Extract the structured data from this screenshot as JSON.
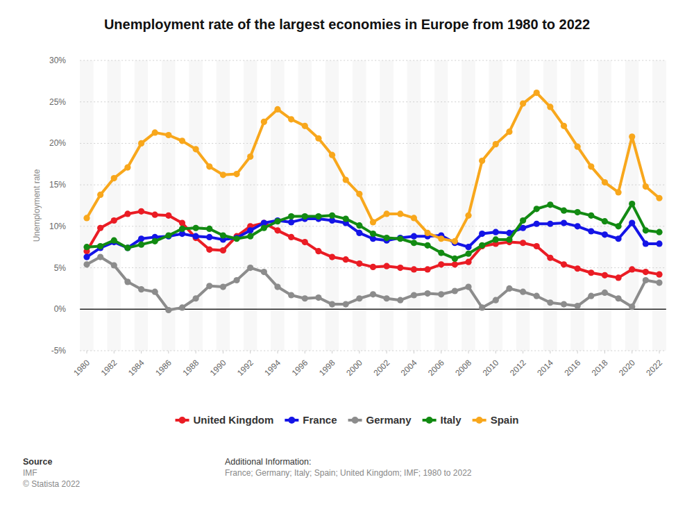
{
  "chart_data": {
    "type": "line",
    "title": "Unemployment rate of the largest economies in Europe from 1980 to 2022",
    "y_label": "Unemployment rate",
    "x": [
      1980,
      1981,
      1982,
      1983,
      1984,
      1985,
      1986,
      1987,
      1988,
      1989,
      1990,
      1991,
      1992,
      1993,
      1994,
      1995,
      1996,
      1997,
      1998,
      1999,
      2000,
      2001,
      2002,
      2003,
      2004,
      2005,
      2006,
      2007,
      2008,
      2009,
      2010,
      2011,
      2012,
      2013,
      2014,
      2015,
      2016,
      2017,
      2018,
      2019,
      2020,
      2021,
      2022
    ],
    "xlim": [
      1980,
      2022
    ],
    "xticks": [
      1980,
      1982,
      1984,
      1986,
      1988,
      1990,
      1992,
      1994,
      1996,
      1998,
      2000,
      2002,
      2004,
      2006,
      2008,
      2010,
      2012,
      2014,
      2016,
      2018,
      2020,
      2022
    ],
    "ylim": [
      -5,
      30
    ],
    "yticks": [
      {
        "value": -5,
        "label": "-5%"
      },
      {
        "value": 0,
        "label": "0%"
      },
      {
        "value": 5,
        "label": "5%"
      },
      {
        "value": 10,
        "label": "10%"
      },
      {
        "value": 15,
        "label": "15%"
      },
      {
        "value": 20,
        "label": "20%"
      },
      {
        "value": 25,
        "label": "25%"
      },
      {
        "value": 30,
        "label": "30%"
      }
    ],
    "grid": true,
    "legend": "bottom",
    "marker": "circle",
    "series": [
      {
        "name": "United Kingdom",
        "color": "#ea1c24",
        "values": [
          7.0,
          9.8,
          10.7,
          11.5,
          11.8,
          11.4,
          11.3,
          10.4,
          8.6,
          7.2,
          7.1,
          8.8,
          10.0,
          10.4,
          9.5,
          8.7,
          8.1,
          7.0,
          6.3,
          6.0,
          5.5,
          5.1,
          5.2,
          5.0,
          4.8,
          4.8,
          5.4,
          5.4,
          5.7,
          7.6,
          7.9,
          8.1,
          8.0,
          7.6,
          6.2,
          5.4,
          4.9,
          4.4,
          4.1,
          3.8,
          4.8,
          4.5,
          4.2
        ]
      },
      {
        "name": "France",
        "color": "#1414e6",
        "values": [
          6.3,
          7.4,
          8.1,
          7.4,
          8.5,
          8.7,
          8.8,
          9.1,
          8.8,
          8.7,
          8.4,
          8.6,
          9.5,
          10.4,
          10.7,
          10.5,
          10.9,
          10.9,
          10.7,
          10.4,
          9.2,
          8.5,
          8.3,
          8.6,
          8.8,
          8.8,
          8.9,
          8.0,
          7.5,
          9.1,
          9.3,
          9.2,
          9.8,
          10.3,
          10.3,
          10.4,
          10.0,
          9.4,
          9.0,
          8.5,
          10.4,
          7.9,
          7.9
        ]
      },
      {
        "name": "Germany",
        "color": "#8c8c8c",
        "values": [
          5.4,
          6.3,
          5.3,
          3.3,
          2.4,
          2.1,
          -0.1,
          0.2,
          1.3,
          2.8,
          2.7,
          3.5,
          5.0,
          4.5,
          2.7,
          1.7,
          1.3,
          1.4,
          0.6,
          0.6,
          1.3,
          1.8,
          1.3,
          1.1,
          1.7,
          1.9,
          1.8,
          2.2,
          2.7,
          0.2,
          1.1,
          2.5,
          2.1,
          1.6,
          0.8,
          0.6,
          0.4,
          1.6,
          2.0,
          1.3,
          0.3,
          3.5,
          3.2
        ]
      },
      {
        "name": "Italy",
        "color": "#128a12",
        "values": [
          7.5,
          7.6,
          8.3,
          7.4,
          7.8,
          8.2,
          8.9,
          9.7,
          9.8,
          9.7,
          8.9,
          8.5,
          8.8,
          9.8,
          10.6,
          11.2,
          11.2,
          11.2,
          11.3,
          10.9,
          10.1,
          9.1,
          8.6,
          8.5,
          8.0,
          7.7,
          6.8,
          6.1,
          6.7,
          7.7,
          8.4,
          8.4,
          10.7,
          12.1,
          12.6,
          11.9,
          11.7,
          11.3,
          10.6,
          10.0,
          12.7,
          9.5,
          9.3
        ]
      },
      {
        "name": "Spain",
        "color": "#f8a71c",
        "values": [
          11.0,
          13.8,
          15.8,
          17.1,
          20.0,
          21.3,
          21.0,
          20.3,
          19.3,
          17.2,
          16.2,
          16.3,
          18.4,
          22.6,
          24.1,
          22.9,
          22.1,
          20.6,
          18.6,
          15.6,
          13.9,
          10.5,
          11.5,
          11.5,
          11.0,
          9.2,
          8.5,
          8.2,
          11.3,
          17.9,
          19.9,
          21.4,
          24.8,
          26.1,
          24.4,
          22.1,
          19.6,
          17.2,
          15.3,
          14.1,
          20.8,
          14.8,
          13.4
        ]
      }
    ],
    "source_label": "Source",
    "source": "IMF",
    "copyright": "© Statista 2022",
    "additional_info_label": "Additional Information:",
    "additional_info": "France; Germany; Italy; Spain; United Kingdom; IMF; 1980 to 2022"
  }
}
